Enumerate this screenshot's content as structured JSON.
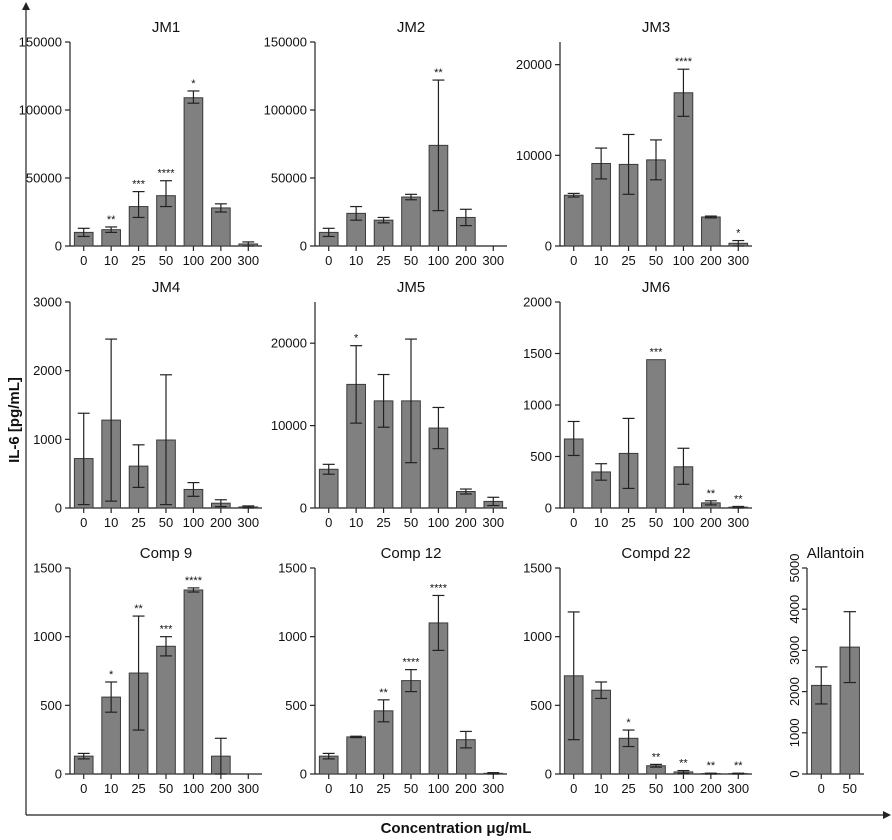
{
  "figure": {
    "ylabel": "IL-6 [pg/mL]",
    "xlabel": "Concentration μg/mL"
  },
  "chart_data": [
    {
      "type": "bar",
      "title": "JM1",
      "categories": [
        "0",
        "10",
        "25",
        "50",
        "100",
        "200",
        "300"
      ],
      "values": [
        10000,
        12000,
        29000,
        37000,
        109000,
        28000,
        1500
      ],
      "err_low": [
        7000,
        10000,
        21000,
        29000,
        105000,
        25000,
        0
      ],
      "err_high": [
        13000,
        14000,
        40000,
        48000,
        114000,
        31000,
        3000
      ],
      "significance": [
        "",
        "**",
        "***",
        "****",
        "*",
        "",
        ""
      ],
      "ylim": [
        0,
        150000
      ],
      "yticks": [
        0,
        50000,
        100000,
        150000
      ],
      "ytick_labels": [
        "0",
        "50000",
        "100000",
        "150000"
      ]
    },
    {
      "type": "bar",
      "title": "JM2",
      "categories": [
        "0",
        "10",
        "25",
        "50",
        "100",
        "200",
        "300"
      ],
      "values": [
        10000,
        24000,
        19000,
        36000,
        74000,
        21000,
        0
      ],
      "err_low": [
        7000,
        19000,
        17000,
        34000,
        26000,
        15000,
        0
      ],
      "err_high": [
        13000,
        29000,
        21000,
        38000,
        122000,
        27000,
        0
      ],
      "significance": [
        "",
        "",
        "",
        "",
        "**",
        "",
        ""
      ],
      "ylim": [
        0,
        150000
      ],
      "yticks": [
        0,
        50000,
        100000,
        150000
      ],
      "ytick_labels": [
        "0",
        "50000",
        "100000",
        "150000"
      ]
    },
    {
      "type": "bar",
      "title": "JM3",
      "categories": [
        "0",
        "10",
        "25",
        "50",
        "100",
        "200",
        "300"
      ],
      "values": [
        5600,
        9100,
        9000,
        9500,
        16900,
        3200,
        300
      ],
      "err_low": [
        5400,
        7400,
        5700,
        7300,
        14300,
        3100,
        0
      ],
      "err_high": [
        5800,
        10800,
        12300,
        11700,
        19500,
        3300,
        600
      ],
      "significance": [
        "",
        "",
        "",
        "",
        "****",
        "",
        "*"
      ],
      "ylim": [
        0,
        22500
      ],
      "yticks": [
        0,
        10000,
        20000
      ],
      "ytick_labels": [
        "0",
        "10000",
        "20000"
      ]
    },
    {
      "type": "bar",
      "title": "JM4",
      "categories": [
        "0",
        "10",
        "25",
        "50",
        "100",
        "200",
        "300"
      ],
      "values": [
        720,
        1280,
        610,
        990,
        270,
        70,
        15
      ],
      "err_low": [
        50,
        100,
        300,
        50,
        170,
        20,
        0
      ],
      "err_high": [
        1380,
        2460,
        920,
        1940,
        370,
        120,
        30
      ],
      "significance": [
        "",
        "",
        "",
        "",
        "",
        "",
        ""
      ],
      "ylim": [
        0,
        3000
      ],
      "yticks": [
        0,
        1000,
        2000,
        3000
      ],
      "ytick_labels": [
        "0",
        "1000",
        "2000",
        "3000"
      ]
    },
    {
      "type": "bar",
      "title": "JM5",
      "categories": [
        "0",
        "10",
        "25",
        "50",
        "100",
        "200",
        "300"
      ],
      "values": [
        4700,
        15000,
        13000,
        13000,
        9700,
        2000,
        800
      ],
      "err_low": [
        4100,
        10300,
        9800,
        5500,
        7200,
        1700,
        300
      ],
      "err_high": [
        5300,
        19700,
        16200,
        20500,
        12200,
        2300,
        1300
      ],
      "significance": [
        "",
        "*",
        "",
        "",
        "",
        "",
        ""
      ],
      "ylim": [
        0,
        25000
      ],
      "yticks": [
        0,
        10000,
        20000
      ],
      "ytick_labels": [
        "0",
        "10000",
        "20000"
      ]
    },
    {
      "type": "bar",
      "title": "JM6",
      "categories": [
        "0",
        "10",
        "25",
        "50",
        "100",
        "200",
        "300"
      ],
      "values": [
        670,
        350,
        530,
        1440,
        400,
        50,
        8
      ],
      "err_low": [
        510,
        270,
        190,
        1440,
        230,
        30,
        0
      ],
      "err_high": [
        840,
        430,
        870,
        1440,
        580,
        70,
        15
      ],
      "significance": [
        "",
        "",
        "",
        "***",
        "",
        "**",
        "**"
      ],
      "ylim": [
        0,
        2000
      ],
      "yticks": [
        0,
        500,
        1000,
        1500,
        2000
      ],
      "ytick_labels": [
        "0",
        "500",
        "1000",
        "1500",
        "2000"
      ]
    },
    {
      "type": "bar",
      "title": "Comp 9",
      "categories": [
        "0",
        "10",
        "25",
        "50",
        "100",
        "200",
        "300"
      ],
      "values": [
        130,
        560,
        735,
        930,
        1340,
        130,
        0
      ],
      "err_low": [
        110,
        450,
        320,
        860,
        1325,
        0,
        0
      ],
      "err_high": [
        150,
        670,
        1150,
        1000,
        1355,
        260,
        0
      ],
      "significance": [
        "",
        "*",
        "**",
        "***",
        "****",
        "",
        ""
      ],
      "ylim": [
        0,
        1500
      ],
      "yticks": [
        0,
        500,
        1000,
        1500
      ],
      "ytick_labels": [
        "0",
        "500",
        "1000",
        "1500"
      ]
    },
    {
      "type": "bar",
      "title": "Comp 12",
      "categories": [
        "0",
        "10",
        "25",
        "50",
        "100",
        "200",
        "300"
      ],
      "values": [
        130,
        270,
        460,
        680,
        1100,
        250,
        5
      ],
      "err_low": [
        110,
        265,
        380,
        600,
        900,
        190,
        0
      ],
      "err_high": [
        150,
        275,
        540,
        760,
        1300,
        310,
        10
      ],
      "significance": [
        "",
        "",
        "**",
        "****",
        "****",
        "",
        ""
      ],
      "ylim": [
        0,
        1500
      ],
      "yticks": [
        0,
        500,
        1000,
        1500
      ],
      "ytick_labels": [
        "0",
        "500",
        "1000",
        "1500"
      ]
    },
    {
      "type": "bar",
      "title": "Compd 22",
      "categories": [
        "0",
        "10",
        "25",
        "50",
        "100",
        "200",
        "300"
      ],
      "values": [
        715,
        610,
        260,
        60,
        15,
        3,
        3
      ],
      "err_low": [
        250,
        550,
        200,
        50,
        5,
        0,
        0
      ],
      "err_high": [
        1180,
        670,
        320,
        70,
        25,
        6,
        6
      ],
      "significance": [
        "",
        "",
        "*",
        "**",
        "**",
        "**",
        "**"
      ],
      "ylim": [
        0,
        1500
      ],
      "yticks": [
        0,
        500,
        1000,
        1500
      ],
      "ytick_labels": [
        "0",
        "500",
        "1000",
        "1500"
      ]
    },
    {
      "type": "bar",
      "title": "Allantoin",
      "categories": [
        "0",
        "50"
      ],
      "values": [
        2150,
        3080
      ],
      "err_low": [
        1700,
        2220
      ],
      "err_high": [
        2600,
        3940
      ],
      "significance": [
        "",
        ""
      ],
      "ylim": [
        0,
        5000
      ],
      "yticks": [
        0,
        1000,
        2000,
        3000,
        4000,
        5000
      ],
      "ytick_labels": [
        "0",
        "1000",
        "2000",
        "3000",
        "4000",
        "5000"
      ],
      "ytick_rotated": true
    }
  ]
}
